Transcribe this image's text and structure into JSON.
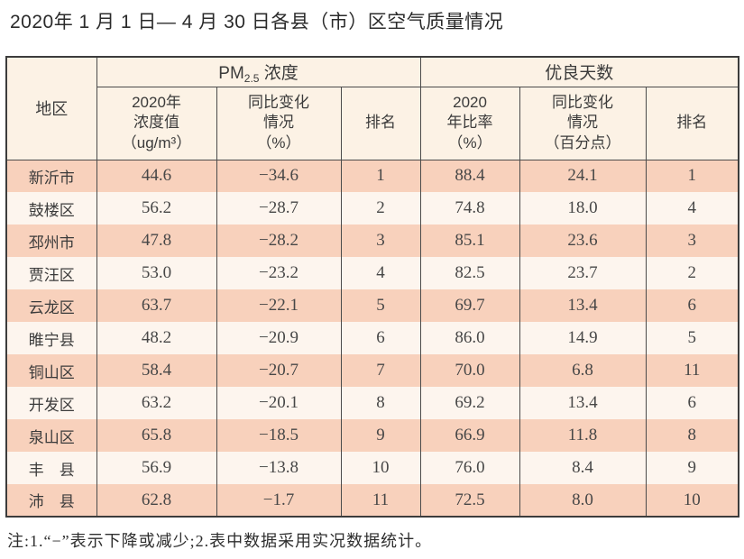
{
  "page": {
    "title": "2020年 1 月 1 日— 4 月 30 日各县（市）区空气质量情况",
    "note": "注:1.“−”表示下降或减少;2.表中数据采用实况数据统计。"
  },
  "colors": {
    "stripe_row_bg": "#f8d1bc",
    "alt_row_bg": "#fdf5ee",
    "header_bg": "#fcf2e5",
    "border": "#4b4b4b",
    "text": "#3b3b3b"
  },
  "header": {
    "region": "地区",
    "pm_group_prefix": "PM",
    "pm_group_sub": "2.5",
    "pm_group_suffix": " 浓度",
    "good_group": "优良天数",
    "pm_value": "2020年\n浓度值\n（ug/m³）",
    "pm_change": "同比变化\n情况\n（%）",
    "pm_rank": "排名",
    "good_ratio": "2020\n年比率\n（%）",
    "good_change": "同比变化\n情况\n（百分点）",
    "good_rank": "排名"
  },
  "chart_data": {
    "type": "table",
    "title": "2020年 1 月 1 日— 4 月 30 日各县（市）区空气质量情况",
    "column_groups": [
      {
        "label": "PM2.5 浓度",
        "span": 3
      },
      {
        "label": "优良天数",
        "span": 3
      }
    ],
    "columns": [
      "地区",
      "2020年浓度值（ug/m³）",
      "同比变化情况（%）",
      "排名",
      "2020年比率（%）",
      "同比变化情况（百分点）",
      "排名"
    ],
    "rows": [
      [
        "新沂市",
        "44.6",
        "−34.6",
        "1",
        "88.4",
        "24.1",
        "1"
      ],
      [
        "鼓楼区",
        "56.2",
        "−28.7",
        "2",
        "74.8",
        "18.0",
        "4"
      ],
      [
        "邳州市",
        "47.8",
        "−28.2",
        "3",
        "85.1",
        "23.6",
        "3"
      ],
      [
        "贾汪区",
        "53.0",
        "−23.2",
        "4",
        "82.5",
        "23.7",
        "2"
      ],
      [
        "云龙区",
        "63.7",
        "−22.1",
        "5",
        "69.7",
        "13.4",
        "6"
      ],
      [
        "睢宁县",
        "48.2",
        "−20.9",
        "6",
        "86.0",
        "14.9",
        "5"
      ],
      [
        "铜山区",
        "58.4",
        "−20.7",
        "7",
        "70.0",
        "6.8",
        "11"
      ],
      [
        "开发区",
        "63.2",
        "−20.1",
        "8",
        "69.2",
        "13.4",
        "6"
      ],
      [
        "泉山区",
        "65.8",
        "−18.5",
        "9",
        "66.9",
        "11.8",
        "8"
      ],
      [
        "丰　县",
        "56.9",
        "−13.8",
        "10",
        "76.0",
        "8.4",
        "9"
      ],
      [
        "沛　县",
        "62.8",
        "−1.7",
        "11",
        "72.5",
        "8.0",
        "10"
      ]
    ],
    "note": "注:1.“−”表示下降或减少;2.表中数据采用实况数据统计。"
  }
}
